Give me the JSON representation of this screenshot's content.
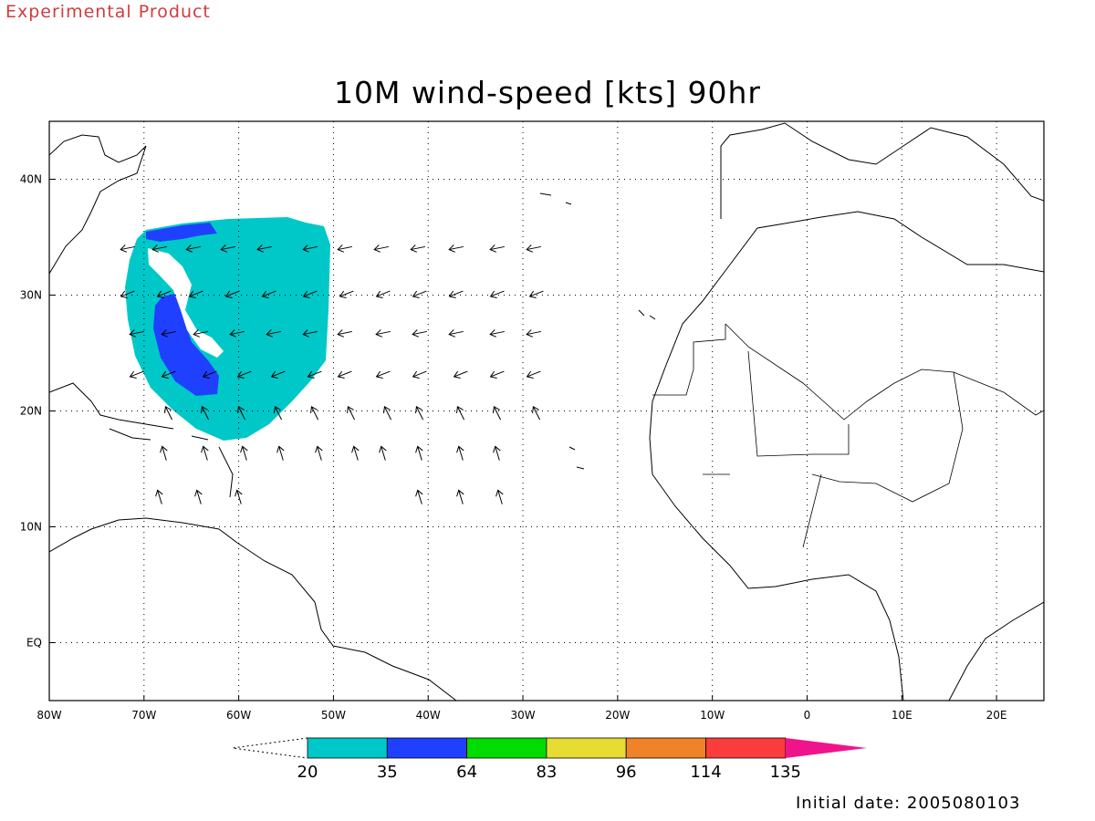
{
  "header": {
    "experimental_label": "Experimental Product",
    "title": "10M wind-speed [kts] 90hr"
  },
  "map": {
    "lon_range": [
      -80,
      25
    ],
    "lat_range": [
      -5,
      45
    ],
    "x_ticks": [
      {
        "lon": -80,
        "label": "80W"
      },
      {
        "lon": -70,
        "label": "70W"
      },
      {
        "lon": -60,
        "label": "60W"
      },
      {
        "lon": -50,
        "label": "50W"
      },
      {
        "lon": -40,
        "label": "40W"
      },
      {
        "lon": -30,
        "label": "30W"
      },
      {
        "lon": -20,
        "label": "20W"
      },
      {
        "lon": -10,
        "label": "10W"
      },
      {
        "lon": 0,
        "label": "0"
      },
      {
        "lon": 10,
        "label": "10E"
      },
      {
        "lon": 20,
        "label": "20E"
      }
    ],
    "y_ticks": [
      {
        "lat": 40,
        "label": "40N"
      },
      {
        "lat": 30,
        "label": "30N"
      },
      {
        "lat": 20,
        "label": "20N"
      },
      {
        "lat": 10,
        "label": "10N"
      },
      {
        "lat": 0,
        "label": "EQ"
      }
    ],
    "grid": "dotted"
  },
  "colorbar": {
    "levels": [
      "20",
      "35",
      "64",
      "83",
      "96",
      "114",
      "135"
    ],
    "colors": [
      "#00c8c8",
      "#2040ff",
      "#00dc00",
      "#e6dc32",
      "#f08228",
      "#fa3c3c",
      "#f0148c"
    ]
  },
  "footer": {
    "initial_date": "Initial date: 2005080103"
  }
}
